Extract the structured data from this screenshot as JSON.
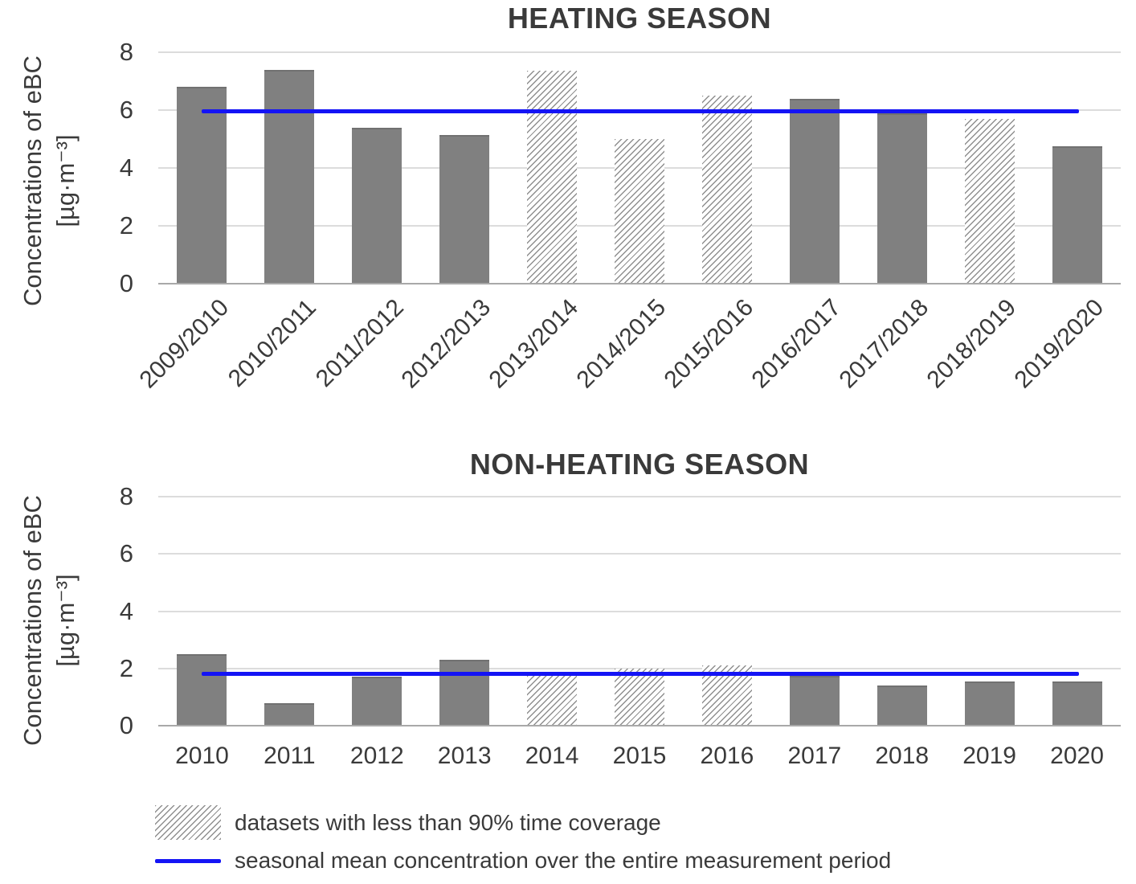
{
  "chart_data": [
    {
      "type": "bar",
      "title": "HEATING SEASON",
      "ylabel": "Concentrations of eBC",
      "ylabel_units": "[µg·m⁻³]",
      "ylim": [
        0,
        8
      ],
      "yticks": [
        0,
        2,
        4,
        6,
        8
      ],
      "grid": true,
      "x_tick_rotation_deg": 45,
      "categories": [
        "2009/2010",
        "2010/2011",
        "2011/2012",
        "2012/2013",
        "2013/2014",
        "2014/2015",
        "2015/2016",
        "2016/2017",
        "2017/2018",
        "2018/2019",
        "2019/2020"
      ],
      "values": [
        6.8,
        7.4,
        5.4,
        5.15,
        7.35,
        5.0,
        6.5,
        6.4,
        5.9,
        5.7,
        4.75
      ],
      "low_coverage_hatched": [
        false,
        false,
        false,
        false,
        true,
        true,
        true,
        false,
        false,
        true,
        false
      ],
      "seasonal_mean": 5.95
    },
    {
      "type": "bar",
      "title": "NON-HEATING SEASON",
      "ylabel": "Concentrations of eBC",
      "ylabel_units": "[µg·m⁻³]",
      "ylim": [
        0,
        8
      ],
      "yticks": [
        0,
        2,
        4,
        6,
        8
      ],
      "grid": true,
      "x_tick_rotation_deg": 0,
      "categories": [
        "2010",
        "2011",
        "2012",
        "2013",
        "2014",
        "2015",
        "2016",
        "2017",
        "2018",
        "2019",
        "2020"
      ],
      "values": [
        2.5,
        0.8,
        1.7,
        2.3,
        1.75,
        2.0,
        2.1,
        1.75,
        1.4,
        1.55,
        1.55
      ],
      "low_coverage_hatched": [
        false,
        false,
        false,
        false,
        true,
        true,
        true,
        false,
        false,
        false,
        false
      ],
      "seasonal_mean": 1.8
    }
  ],
  "legend": {
    "items": [
      {
        "swatch": "hatched-square",
        "label": "datasets with less than 90% time coverage"
      },
      {
        "swatch": "blue-mean-line",
        "label": "seasonal mean concentration over the entire measurement period"
      }
    ]
  },
  "colors": {
    "bar_fill": "#808080",
    "hatch_line": "#8f8f8f",
    "seasonal_mean_line": "#1414f5",
    "gridline": "#dcdcdc",
    "axis_line": "#a9a9a9",
    "text": "#3a3a3a"
  }
}
